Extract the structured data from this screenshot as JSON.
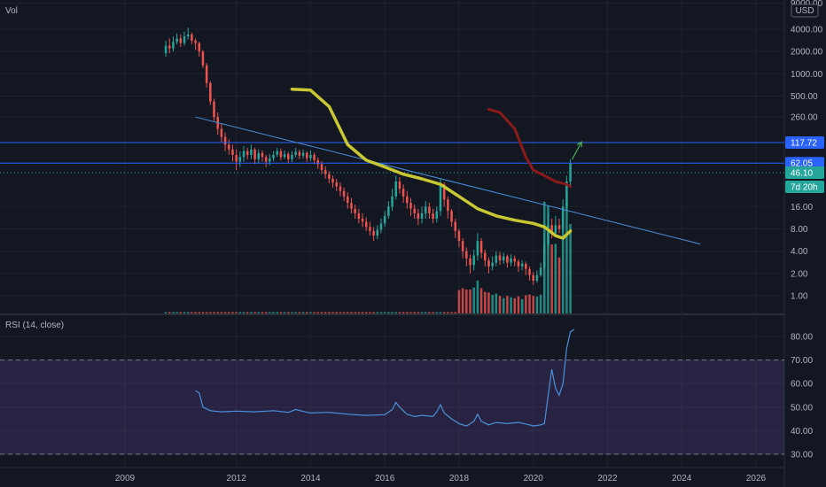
{
  "chart_data": {
    "type": "candlestick",
    "price_pane": {
      "indicator_label": "Vol",
      "currency": "USD",
      "y_scale": "log",
      "y_tick_labels": [
        "9000.00",
        "4000.00",
        "2000.00",
        "1000.00",
        "500.00",
        "260.00",
        "117.72",
        "62.05",
        "46.10",
        "16.00",
        "8.00",
        "4.00",
        "2.00",
        "1.00"
      ],
      "ylim": [
        0.6,
        9000
      ],
      "price_tags": [
        {
          "label": "117.72",
          "value": 117.72,
          "color": "#2962ff"
        },
        {
          "label": "62.05",
          "value": 62.05,
          "color": "#2962ff"
        },
        {
          "label": "46.10",
          "value": 46.1,
          "color": "#26a69a"
        },
        {
          "label": "7d 20h",
          "value": 30,
          "color": "#26a69a"
        }
      ],
      "horizontal_lines": [
        117.72,
        62.05
      ],
      "dotted_line": 46.1,
      "trendline": {
        "start": [
          "2010.9",
          260
        ],
        "end": [
          "2024.5",
          5
        ],
        "color": "#4a90d9"
      },
      "ma_yellow": {
        "color": "#c8c832",
        "points": [
          [
            "2013.5",
            620
          ],
          [
            "2014.0",
            600
          ],
          [
            "2014.5",
            360
          ],
          [
            "2015.0",
            110
          ],
          [
            "2015.5",
            68
          ],
          [
            "2016.0",
            55
          ],
          [
            "2016.5",
            44
          ],
          [
            "2017.0",
            38
          ],
          [
            "2017.5",
            32
          ],
          [
            "2018.0",
            22
          ],
          [
            "2018.5",
            15
          ],
          [
            "2019.0",
            12
          ],
          [
            "2019.5",
            10.5
          ],
          [
            "2020.0",
            9.5
          ],
          [
            "2020.3",
            8.5
          ],
          [
            "2020.6",
            6.5
          ],
          [
            "2020.8",
            6.0
          ],
          [
            "2021.0",
            7.5
          ]
        ]
      },
      "ma_red": {
        "color": "#8b1a1a",
        "points": [
          [
            "2018.8",
            330
          ],
          [
            "2019.1",
            300
          ],
          [
            "2019.5",
            180
          ],
          [
            "2019.8",
            75
          ],
          [
            "2020.0",
            50
          ],
          [
            "2020.3",
            42
          ],
          [
            "2020.6",
            35
          ],
          [
            "2020.9",
            32
          ],
          [
            "2021.0",
            30
          ]
        ]
      },
      "arrow": {
        "from": [
          "2021.05",
          70
        ],
        "to": [
          "2021.3",
          120
        ],
        "color": "#4caf50"
      },
      "candles": [
        [
          "2010.1",
          1900,
          2400,
          2800,
          1700
        ],
        [
          "2010.2",
          2400,
          2200,
          3000,
          1900
        ],
        [
          "2010.3",
          2200,
          2700,
          3200,
          2000
        ],
        [
          "2010.4",
          2700,
          3000,
          3500,
          2500
        ],
        [
          "2010.5",
          3000,
          2600,
          3400,
          2300
        ],
        [
          "2010.6",
          2600,
          3200,
          3700,
          2400
        ],
        [
          "2010.7",
          3200,
          3400,
          4200,
          2900
        ],
        [
          "2010.8",
          3400,
          2800,
          3600,
          2500
        ],
        [
          "2010.9",
          2800,
          2600,
          3000,
          2100
        ],
        [
          "2011.0",
          2600,
          2000,
          2700,
          1700
        ],
        [
          "2011.1",
          2000,
          1300,
          2100,
          1200
        ],
        [
          "2011.2",
          1300,
          750,
          1400,
          650
        ],
        [
          "2011.3",
          750,
          420,
          800,
          380
        ],
        [
          "2011.4",
          420,
          260,
          460,
          230
        ],
        [
          "2011.5",
          260,
          180,
          300,
          150
        ],
        [
          "2011.6",
          180,
          140,
          210,
          120
        ],
        [
          "2011.7",
          140,
          110,
          160,
          90
        ],
        [
          "2011.8",
          110,
          95,
          130,
          80
        ],
        [
          "2011.9",
          95,
          80,
          110,
          65
        ],
        [
          "2012.0",
          80,
          65,
          95,
          50
        ],
        [
          "2012.1",
          65,
          75,
          90,
          55
        ],
        [
          "2012.2",
          75,
          90,
          105,
          65
        ],
        [
          "2012.3",
          90,
          80,
          100,
          70
        ],
        [
          "2012.4",
          80,
          95,
          110,
          70
        ],
        [
          "2012.5",
          95,
          70,
          100,
          60
        ],
        [
          "2012.6",
          70,
          85,
          95,
          62
        ],
        [
          "2012.7",
          85,
          75,
          92,
          65
        ],
        [
          "2012.8",
          75,
          65,
          80,
          55
        ],
        [
          "2012.9",
          65,
          72,
          82,
          58
        ],
        [
          "2013.0",
          72,
          80,
          90,
          66
        ],
        [
          "2013.1",
          80,
          90,
          100,
          75
        ],
        [
          "2013.2",
          90,
          75,
          98,
          68
        ],
        [
          "2013.3",
          75,
          82,
          92,
          70
        ],
        [
          "2013.4",
          82,
          70,
          88,
          62
        ],
        [
          "2013.5",
          70,
          80,
          90,
          64
        ],
        [
          "2013.6",
          80,
          88,
          100,
          74
        ],
        [
          "2013.7",
          88,
          78,
          95,
          70
        ],
        [
          "2013.8",
          78,
          85,
          95,
          72
        ],
        [
          "2013.9",
          85,
          72,
          90,
          64
        ],
        [
          "2014.0",
          72,
          80,
          92,
          66
        ],
        [
          "2014.1",
          80,
          68,
          86,
          60
        ],
        [
          "2014.2",
          68,
          60,
          74,
          52
        ],
        [
          "2014.3",
          60,
          50,
          66,
          44
        ],
        [
          "2014.4",
          50,
          44,
          56,
          38
        ],
        [
          "2014.5",
          44,
          38,
          48,
          33
        ],
        [
          "2014.6",
          38,
          34,
          42,
          29
        ],
        [
          "2014.7",
          34,
          30,
          38,
          26
        ],
        [
          "2014.8",
          30,
          26,
          34,
          22
        ],
        [
          "2014.9",
          26,
          22,
          29,
          19
        ],
        [
          "2015.0",
          22,
          18,
          25,
          15
        ],
        [
          "2015.1",
          18,
          15,
          21,
          13
        ],
        [
          "2015.2",
          15,
          13,
          17,
          11
        ],
        [
          "2015.3",
          13,
          11,
          15,
          9.5
        ],
        [
          "2015.4",
          11,
          10,
          13,
          8.5
        ],
        [
          "2015.5",
          10,
          8.5,
          11.5,
          7.5
        ],
        [
          "2015.6",
          8.5,
          7.5,
          10,
          6.5
        ],
        [
          "2015.7",
          7.5,
          6.5,
          8.5,
          5.5
        ],
        [
          "2015.8",
          6.5,
          7.8,
          9,
          5.8
        ],
        [
          "2015.9",
          7.8,
          9.5,
          11,
          7
        ],
        [
          "2016.0",
          9.5,
          12,
          14,
          8.5
        ],
        [
          "2016.1",
          12,
          16,
          19,
          11
        ],
        [
          "2016.2",
          16,
          22,
          28,
          14
        ],
        [
          "2016.3",
          22,
          35,
          42,
          20
        ],
        [
          "2016.4",
          35,
          28,
          40,
          24
        ],
        [
          "2016.5",
          28,
          22,
          32,
          18
        ],
        [
          "2016.6",
          22,
          18,
          26,
          15
        ],
        [
          "2016.7",
          18,
          15,
          21,
          12
        ],
        [
          "2016.8",
          15,
          13,
          17,
          11
        ],
        [
          "2016.9",
          13,
          11,
          15,
          9
        ],
        [
          "2017.0",
          11,
          13,
          16,
          9.5
        ],
        [
          "2017.1",
          13,
          16,
          19,
          11
        ],
        [
          "2017.2",
          16,
          13,
          18,
          11
        ],
        [
          "2017.3",
          13,
          11,
          15,
          9.5
        ],
        [
          "2017.4",
          11,
          14,
          16,
          9.8
        ],
        [
          "2017.5",
          14,
          32,
          38,
          12
        ],
        [
          "2017.6",
          32,
          20,
          34,
          16
        ],
        [
          "2017.7",
          20,
          14,
          22,
          11
        ],
        [
          "2017.8",
          14,
          10,
          15,
          8.5
        ],
        [
          "2017.9",
          10,
          7.5,
          11,
          6
        ],
        [
          "2018.0",
          7.5,
          5.5,
          8,
          4.5
        ],
        [
          "2018.1",
          5.5,
          4,
          6,
          3.2
        ],
        [
          "2018.2",
          4,
          3.2,
          4.5,
          2.5
        ],
        [
          "2018.3",
          3.2,
          2.6,
          3.6,
          2.0
        ],
        [
          "2018.4",
          2.6,
          3.5,
          4.2,
          2.2
        ],
        [
          "2018.5",
          3.5,
          5.5,
          7,
          3
        ],
        [
          "2018.6",
          5.5,
          3.8,
          6,
          3.2
        ],
        [
          "2018.7",
          3.8,
          3,
          4.2,
          2.5
        ],
        [
          "2018.8",
          3,
          2.5,
          3.3,
          2.0
        ],
        [
          "2018.9",
          2.5,
          2.8,
          3.4,
          2.2
        ],
        [
          "2019.0",
          2.8,
          3.5,
          4,
          2.5
        ],
        [
          "2019.1",
          3.5,
          3,
          3.9,
          2.6
        ],
        [
          "2019.2",
          3,
          3.4,
          3.8,
          2.7
        ],
        [
          "2019.3",
          3.4,
          2.8,
          3.6,
          2.4
        ],
        [
          "2019.4",
          2.8,
          3.2,
          3.6,
          2.5
        ],
        [
          "2019.5",
          3.2,
          2.9,
          3.5,
          2.5
        ],
        [
          "2019.6",
          2.9,
          2.5,
          3.1,
          2.1
        ],
        [
          "2019.7",
          2.5,
          2.7,
          3,
          2.2
        ],
        [
          "2019.8",
          2.7,
          2.3,
          2.9,
          1.9
        ],
        [
          "2019.9",
          2.3,
          1.9,
          2.5,
          1.6
        ],
        [
          "2020.0",
          1.9,
          1.6,
          2.1,
          1.4
        ],
        [
          "2020.1",
          1.6,
          1.9,
          2.2,
          1.5
        ],
        [
          "2020.2",
          1.9,
          2.4,
          2.8,
          1.8
        ],
        [
          "2020.3",
          2.4,
          5,
          7,
          2.3
        ],
        [
          "2020.4",
          5,
          9,
          13,
          4.5
        ],
        [
          "2020.5",
          9,
          7,
          11,
          6
        ],
        [
          "2020.6",
          7,
          9,
          12,
          6.5
        ],
        [
          "2020.7",
          9,
          8,
          11,
          7
        ],
        [
          "2020.8",
          8,
          16,
          20,
          7.5
        ],
        [
          "2020.9",
          16,
          35,
          42,
          14
        ],
        [
          "2021.0",
          35,
          62,
          70,
          30
        ]
      ]
    },
    "rsi_pane": {
      "label": "RSI (14, close)",
      "y_tick_labels": [
        "80.00",
        "70.00",
        "60.00",
        "50.00",
        "40.00",
        "30.00"
      ],
      "ylim": [
        28,
        86
      ],
      "band": [
        30,
        70
      ],
      "line_color": "#4a90d9",
      "points": [
        [
          "2010.9",
          57
        ],
        [
          "2011.0",
          56
        ],
        [
          "2011.1",
          50
        ],
        [
          "2011.3",
          48.5
        ],
        [
          "2011.6",
          48
        ],
        [
          "2012.0",
          48.3
        ],
        [
          "2012.5",
          48
        ],
        [
          "2013.0",
          48.5
        ],
        [
          "2013.4",
          47.8
        ],
        [
          "2013.6",
          49
        ],
        [
          "2013.8",
          48.2
        ],
        [
          "2014.0",
          47.5
        ],
        [
          "2014.5",
          47.8
        ],
        [
          "2015.0",
          47
        ],
        [
          "2015.5",
          46.5
        ],
        [
          "2016.0",
          46.8
        ],
        [
          "2016.2",
          49
        ],
        [
          "2016.3",
          52
        ],
        [
          "2016.4",
          50
        ],
        [
          "2016.6",
          47
        ],
        [
          "2016.8",
          46
        ],
        [
          "2017.0",
          46.5
        ],
        [
          "2017.3",
          46
        ],
        [
          "2017.4",
          48
        ],
        [
          "2017.5",
          51
        ],
        [
          "2017.6",
          47.5
        ],
        [
          "2017.8",
          45
        ],
        [
          "2018.0",
          43
        ],
        [
          "2018.2",
          42
        ],
        [
          "2018.4",
          44
        ],
        [
          "2018.5",
          47
        ],
        [
          "2018.6",
          44
        ],
        [
          "2018.8",
          42.5
        ],
        [
          "2019.0",
          43.5
        ],
        [
          "2019.3",
          43
        ],
        [
          "2019.6",
          43.5
        ],
        [
          "2019.9",
          42.5
        ],
        [
          "2020.0",
          42
        ],
        [
          "2020.2",
          42.5
        ],
        [
          "2020.3",
          43
        ],
        [
          "2020.4",
          55
        ],
        [
          "2020.5",
          66
        ],
        [
          "2020.6",
          58
        ],
        [
          "2020.7",
          55
        ],
        [
          "2020.8",
          60
        ],
        [
          "2020.9",
          75
        ],
        [
          "2021.0",
          82
        ],
        [
          "2021.1",
          83
        ]
      ]
    },
    "x_tick_labels": [
      "2009",
      "2012",
      "2014",
      "2016",
      "2018",
      "2020",
      "2022",
      "2024",
      "2026"
    ],
    "colors": {
      "up": "#26a69a",
      "down": "#ef5350",
      "background": "#131722",
      "grid": "#1e222d"
    }
  }
}
